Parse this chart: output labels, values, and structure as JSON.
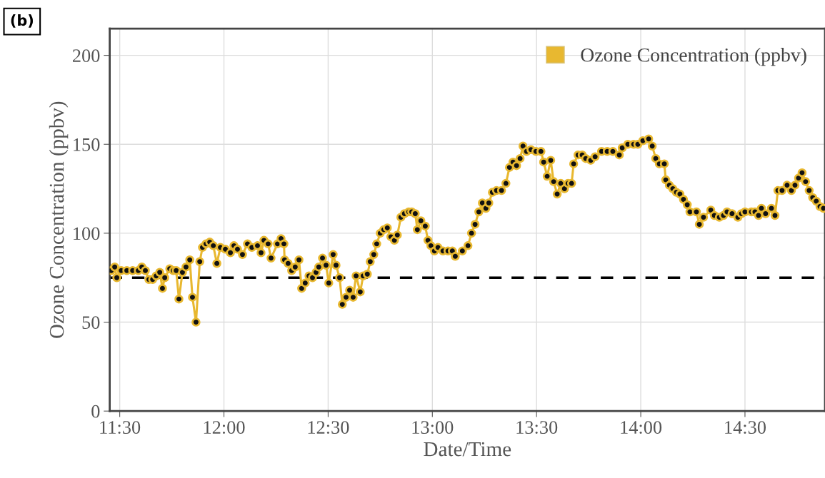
{
  "chart_data": {
    "type": "line",
    "xlabel": "Date/Time",
    "ylabel": "Ozone Concentration (ppbv)",
    "annotations": [
      "(b)"
    ],
    "series": [
      {
        "name": "Ozone Concentration (ppbv)",
        "color": "#e8b830",
        "x": [
          11.459,
          11.476,
          11.486,
          11.507,
          11.534,
          11.562,
          11.589,
          11.606,
          11.623,
          11.64,
          11.658,
          11.675,
          11.692,
          11.705,
          11.716,
          11.74,
          11.757,
          11.771,
          11.784,
          11.801,
          11.818,
          11.836,
          11.849,
          11.866,
          11.884,
          11.897,
          11.914,
          11.932,
          11.949,
          11.966,
          11.983,
          12.007,
          12.031,
          12.048,
          12.065,
          12.089,
          12.113,
          12.134,
          12.161,
          12.178,
          12.192,
          12.212,
          12.226,
          12.257,
          12.274,
          12.288,
          12.291,
          12.308,
          12.325,
          12.342,
          12.36,
          12.373,
          12.39,
          12.408,
          12.425,
          12.442,
          12.455,
          12.473,
          12.49,
          12.503,
          12.524,
          12.538,
          12.555,
          12.568,
          12.586,
          12.603,
          12.62,
          12.634,
          12.654,
          12.668,
          12.688,
          12.702,
          12.719,
          12.733,
          12.75,
          12.767,
          12.784,
          12.801,
          12.818,
          12.832,
          12.849,
          12.866,
          12.887,
          12.901,
          12.918,
          12.928,
          12.945,
          12.966,
          12.979,
          12.993,
          13.01,
          13.027,
          13.051,
          13.075,
          13.096,
          13.11,
          13.144,
          13.171,
          13.188,
          13.205,
          13.223,
          13.24,
          13.257,
          13.271,
          13.288,
          13.308,
          13.332,
          13.353,
          13.37,
          13.387,
          13.404,
          13.421,
          13.435,
          13.452,
          13.473,
          13.497,
          13.521,
          13.534,
          13.551,
          13.568,
          13.582,
          13.599,
          13.616,
          13.634,
          13.651,
          13.668,
          13.678,
          13.699,
          13.719,
          13.736,
          13.76,
          13.781,
          13.812,
          13.839,
          13.866,
          13.897,
          13.911,
          13.938,
          13.966,
          13.986,
          14.01,
          14.038,
          14.055,
          14.072,
          14.089,
          14.113,
          14.12,
          14.137,
          14.154,
          14.171,
          14.188,
          14.205,
          14.223,
          14.236,
          14.267,
          14.281,
          14.301,
          14.336,
          14.353,
          14.377,
          14.397,
          14.414,
          14.438,
          14.466,
          14.483,
          14.5,
          14.531,
          14.548,
          14.565,
          14.579,
          14.599,
          14.627,
          14.644,
          14.658,
          14.678,
          14.702,
          14.723,
          14.74,
          14.757,
          14.774,
          14.791,
          14.808,
          14.825,
          14.842,
          14.86,
          14.877
        ],
        "values": [
          79,
          81,
          75,
          79,
          79,
          79,
          79,
          81,
          79,
          74,
          74,
          76,
          78,
          69,
          75,
          80,
          79,
          79,
          63,
          78,
          81,
          85,
          64,
          50,
          84,
          92,
          94,
          95,
          93,
          83,
          92,
          91,
          89,
          93,
          91,
          88,
          94,
          92,
          93,
          89,
          96,
          94,
          86,
          94,
          97,
          94,
          85,
          83,
          79,
          81,
          85,
          69,
          72,
          76,
          75,
          78,
          81,
          86,
          82,
          72,
          88,
          82,
          75,
          60,
          64,
          68,
          64,
          76,
          67,
          76,
          77,
          84,
          88,
          94,
          100,
          102,
          103,
          98,
          96,
          99,
          109,
          111,
          112,
          112,
          111,
          102,
          107,
          104,
          96,
          93,
          90,
          92,
          90,
          90,
          90,
          87,
          90,
          93,
          100,
          105,
          112,
          117,
          114,
          117,
          123,
          124,
          124,
          128,
          137,
          140,
          138,
          142,
          149,
          146,
          147,
          146,
          146,
          140,
          132,
          141,
          129,
          122,
          128,
          125,
          128,
          128,
          139,
          144,
          144,
          142,
          141,
          143,
          146,
          146,
          146,
          144,
          148,
          150,
          150,
          150,
          152,
          153,
          149,
          142,
          139,
          139,
          130,
          127,
          125,
          123,
          122,
          119,
          116,
          112,
          112,
          105,
          109,
          113,
          110,
          109,
          110,
          112,
          111,
          109,
          111,
          112,
          112,
          112,
          110,
          114,
          111,
          114,
          110,
          124,
          124,
          127,
          124,
          127,
          131,
          134,
          129,
          124,
          120,
          118,
          115,
          114
        ]
      }
    ],
    "xlim": [
      11.452,
      14.884
    ],
    "xticks": [
      {
        "value": 11.5,
        "label": "11:30"
      },
      {
        "value": 12,
        "label": "12:00"
      },
      {
        "value": 12.5,
        "label": "12:30"
      },
      {
        "value": 13,
        "label": "13:00"
      },
      {
        "value": 13.5,
        "label": "13:30"
      },
      {
        "value": 14,
        "label": "14:00"
      },
      {
        "value": 14.5,
        "label": "14:30"
      }
    ],
    "ylim": [
      0,
      215
    ],
    "yticks": [
      0,
      50,
      100,
      150,
      200
    ],
    "ref_lines": [
      {
        "axis": "y",
        "value": 75,
        "color": "#000000",
        "line_style": "dashed"
      }
    ],
    "grid": true,
    "legend": "top right",
    "marker": "circle",
    "line_style": "solid"
  }
}
